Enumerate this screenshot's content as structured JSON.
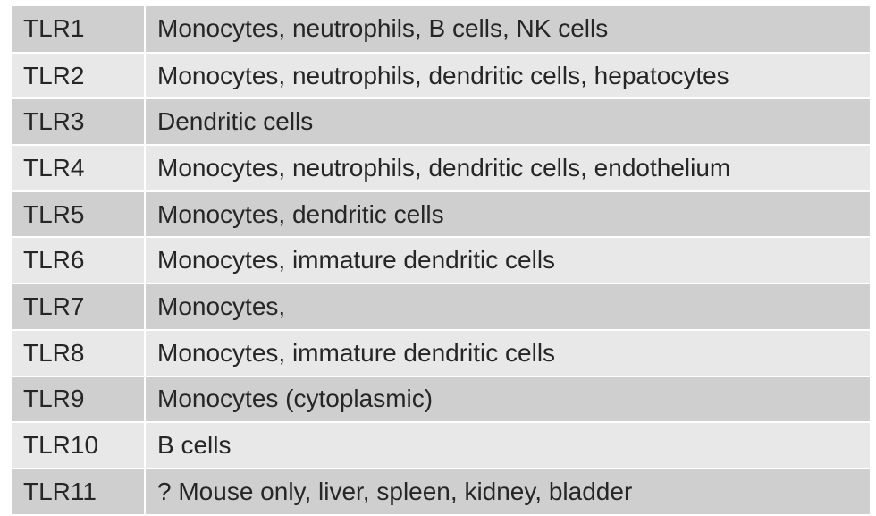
{
  "table": {
    "rows": [
      {
        "receptor": "TLR1",
        "cells": "Monocytes, neutrophils, B cells, NK cells"
      },
      {
        "receptor": "TLR2",
        "cells": "Monocytes, neutrophils, dendritic cells, hepatocytes"
      },
      {
        "receptor": "TLR3",
        "cells": "Dendritic cells"
      },
      {
        "receptor": "TLR4",
        "cells": "Monocytes, neutrophils, dendritic cells, endothelium"
      },
      {
        "receptor": "TLR5",
        "cells": "Monocytes, dendritic cells"
      },
      {
        "receptor": "TLR6",
        "cells": "Monocytes, immature dendritic cells"
      },
      {
        "receptor": "TLR7",
        "cells": "Monocytes,"
      },
      {
        "receptor": "TLR8",
        "cells": "Monocytes, immature dendritic cells"
      },
      {
        "receptor": "TLR9",
        "cells": "Monocytes (cytoplasmic)"
      },
      {
        "receptor": "TLR10",
        "cells": "B cells"
      },
      {
        "receptor": "TLR11",
        "cells": "? Mouse only, liver, spleen, kidney, bladder"
      }
    ]
  },
  "colors": {
    "row_dark": "#cfcfcf",
    "row_light": "#e8e8e8",
    "text": "#262626"
  }
}
